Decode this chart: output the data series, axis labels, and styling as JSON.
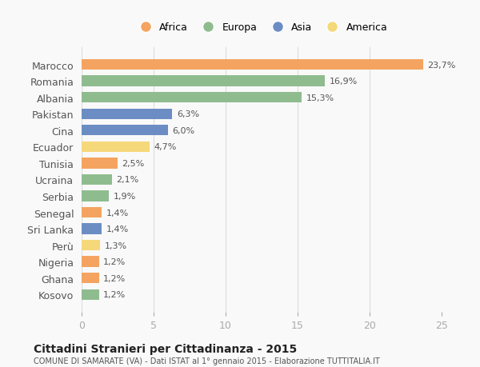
{
  "countries": [
    "Marocco",
    "Romania",
    "Albania",
    "Pakistan",
    "Cina",
    "Ecuador",
    "Tunisia",
    "Ucraina",
    "Serbia",
    "Senegal",
    "Sri Lanka",
    "Perù",
    "Nigeria",
    "Ghana",
    "Kosovo"
  ],
  "values": [
    23.7,
    16.9,
    15.3,
    6.3,
    6.0,
    4.7,
    2.5,
    2.1,
    1.9,
    1.4,
    1.4,
    1.3,
    1.2,
    1.2,
    1.2
  ],
  "continents": [
    "Africa",
    "Europa",
    "Europa",
    "Asia",
    "Asia",
    "America",
    "Africa",
    "Europa",
    "Europa",
    "Africa",
    "Asia",
    "America",
    "Africa",
    "Africa",
    "Europa"
  ],
  "colors": {
    "Africa": "#F4A460",
    "Europa": "#8FBC8F",
    "Asia": "#6B8DC4",
    "America": "#F5D87A"
  },
  "legend_order": [
    "Africa",
    "Europa",
    "Asia",
    "America"
  ],
  "title": "Cittadini Stranieri per Cittadinanza - 2015",
  "subtitle": "COMUNE DI SAMARATE (VA) - Dati ISTAT al 1° gennaio 2015 - Elaborazione TUTTITALIA.IT",
  "xlim": [
    0,
    25
  ],
  "xticks": [
    0,
    5,
    10,
    15,
    20,
    25
  ],
  "background_color": "#f9f9f9",
  "grid_color": "#dddddd"
}
